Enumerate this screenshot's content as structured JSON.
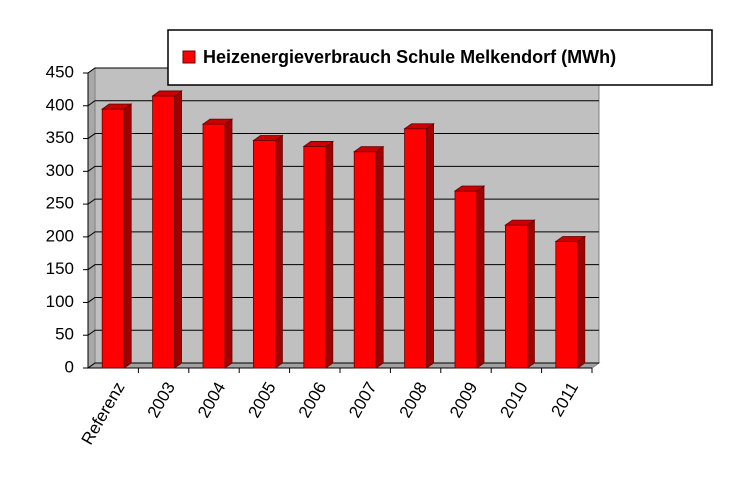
{
  "chart_data": {
    "type": "bar3d",
    "categories": [
      "Referenz",
      "2003",
      "2004",
      "2005",
      "2006",
      "2007",
      "2008",
      "2009",
      "2010",
      "2011"
    ],
    "series": [
      {
        "name": "Heizenergieverbrauch Schule Melkendorf (MWh)",
        "color": "#ff0000",
        "values": [
          395,
          415,
          372,
          347,
          338,
          330,
          365,
          270,
          218,
          193
        ]
      }
    ],
    "ylim": [
      0,
      450
    ],
    "yticks": [
      0,
      50,
      100,
      150,
      200,
      250,
      300,
      350,
      400,
      450
    ],
    "grid": true
  }
}
